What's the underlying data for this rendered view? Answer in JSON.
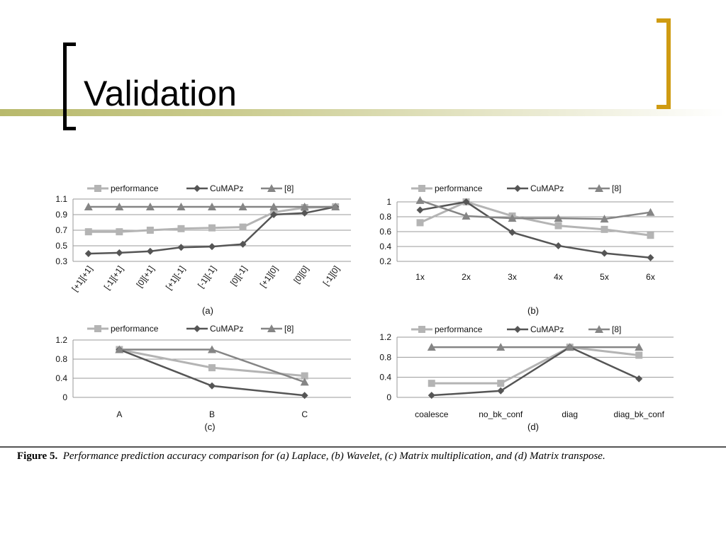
{
  "slide": {
    "title": "Validation"
  },
  "caption": {
    "label": "Figure 5.",
    "text": "Performance prediction accuracy comparison for (a) Laplace, (b) Wavelet, (c) Matrix multiplication, and (d) Matrix transpose."
  },
  "colors": {
    "bracket_left": "#000000",
    "bracket_right": "#cf9b12",
    "title_line": "#b8b96c",
    "performance": "#b4b4b4",
    "cumapz": "#555555",
    "ref8": "#858585"
  },
  "chart_data": [
    {
      "id": "a",
      "type": "line",
      "sublabel": "(a)",
      "categories": [
        "[+1][+1]",
        "[-1][+1]",
        "[0][+1]",
        "[+1][-1]",
        "[-1][-1]",
        "[0][-1]",
        "[+1][0]",
        "[0][0]",
        "[-1][0]"
      ],
      "series": [
        {
          "name": "performance",
          "marker": "square",
          "values": [
            0.68,
            0.68,
            0.7,
            0.72,
            0.73,
            0.74,
            0.93,
            0.99,
            1.0
          ]
        },
        {
          "name": "CuMAPz",
          "marker": "diamond",
          "values": [
            0.4,
            0.41,
            0.43,
            0.48,
            0.49,
            0.52,
            0.9,
            0.92,
            1.0
          ]
        },
        {
          "name": "[8]",
          "marker": "triangle",
          "values": [
            1.0,
            1.0,
            1.0,
            1.0,
            1.0,
            1.0,
            1.0,
            1.0,
            1.0
          ]
        }
      ],
      "yticks": [
        "1.1",
        "0.9",
        "0.7",
        "0.5",
        "0.3"
      ],
      "ylim": [
        0.3,
        1.1
      ],
      "rotate_xticks": true,
      "legend": "top",
      "grid": true
    },
    {
      "id": "b",
      "type": "line",
      "sublabel": "(b)",
      "categories": [
        "1x",
        "2x",
        "3x",
        "4x",
        "5x",
        "6x"
      ],
      "series": [
        {
          "name": "performance",
          "marker": "square",
          "values": [
            0.72,
            1.0,
            0.81,
            0.68,
            0.63,
            0.55
          ]
        },
        {
          "name": "CuMAPz",
          "marker": "diamond",
          "values": [
            0.89,
            1.0,
            0.59,
            0.41,
            0.31,
            0.25
          ]
        },
        {
          "name": "[8]",
          "marker": "triangle",
          "values": [
            1.02,
            0.81,
            0.78,
            0.78,
            0.77,
            0.86
          ]
        }
      ],
      "yticks": [
        "1",
        "0.8",
        "0.6",
        "0.4",
        "0.2"
      ],
      "ylim": [
        0.2,
        1.0
      ],
      "rotate_xticks": false,
      "legend": "top",
      "grid": true
    },
    {
      "id": "c",
      "type": "line",
      "sublabel": "(c)",
      "categories": [
        "A",
        "B",
        "C"
      ],
      "series": [
        {
          "name": "performance",
          "marker": "square",
          "values": [
            1.0,
            0.62,
            0.45
          ]
        },
        {
          "name": "CuMAPz",
          "marker": "diamond",
          "values": [
            1.0,
            0.24,
            0.04
          ]
        },
        {
          "name": "[8]",
          "marker": "triangle",
          "values": [
            1.0,
            1.0,
            0.32
          ]
        }
      ],
      "yticks": [
        "1.2",
        "0.8",
        "0.4",
        "0"
      ],
      "ylim": [
        0,
        1.2
      ],
      "rotate_xticks": false,
      "legend": "top",
      "grid": true
    },
    {
      "id": "d",
      "type": "line",
      "sublabel": "(d)",
      "categories": [
        "coalesce",
        "no_bk_conf",
        "diag",
        "diag_bk_conf"
      ],
      "series": [
        {
          "name": "performance",
          "marker": "square",
          "values": [
            0.28,
            0.28,
            1.0,
            0.84
          ]
        },
        {
          "name": "CuMAPz",
          "marker": "diamond",
          "values": [
            0.04,
            0.13,
            1.0,
            0.37
          ]
        },
        {
          "name": "[8]",
          "marker": "triangle",
          "values": [
            1.0,
            1.0,
            1.0,
            1.0
          ]
        }
      ],
      "yticks": [
        "1.2",
        "0.8",
        "0.4",
        "0"
      ],
      "ylim": [
        0,
        1.2
      ],
      "rotate_xticks": false,
      "legend": "top",
      "grid": true
    }
  ]
}
